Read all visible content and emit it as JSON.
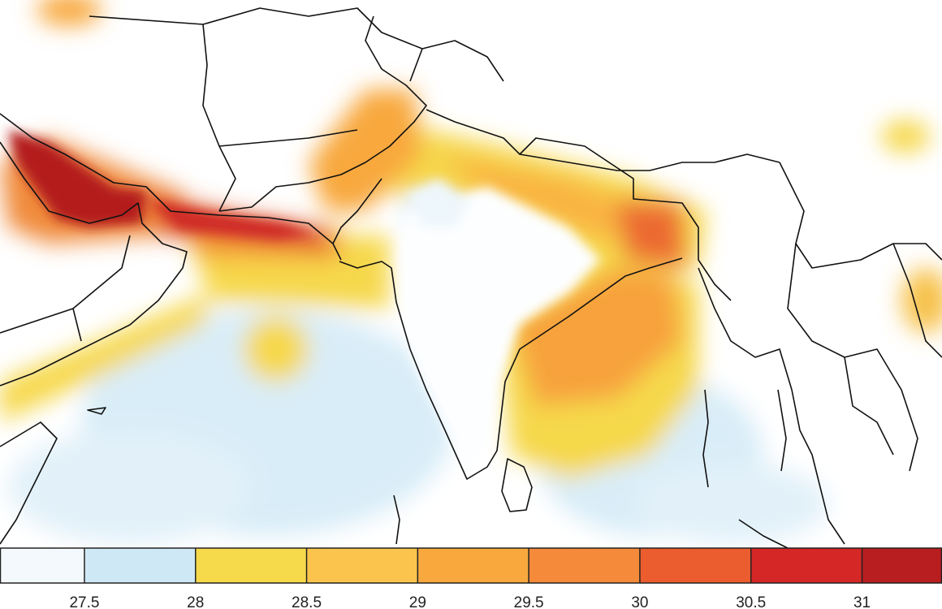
{
  "colorbar": {
    "lim": [
      27.12,
      31.36
    ],
    "ticks": [
      27.5,
      28,
      28.5,
      29,
      29.5,
      30,
      30.5,
      31
    ],
    "colors": [
      "#f3f9fc",
      "#cfe8f5",
      "#f6da4c",
      "#fbc54d",
      "#f8a83d",
      "#f48a3a",
      "#eb5d2e",
      "#d42726",
      "#b81d1f"
    ]
  }
}
